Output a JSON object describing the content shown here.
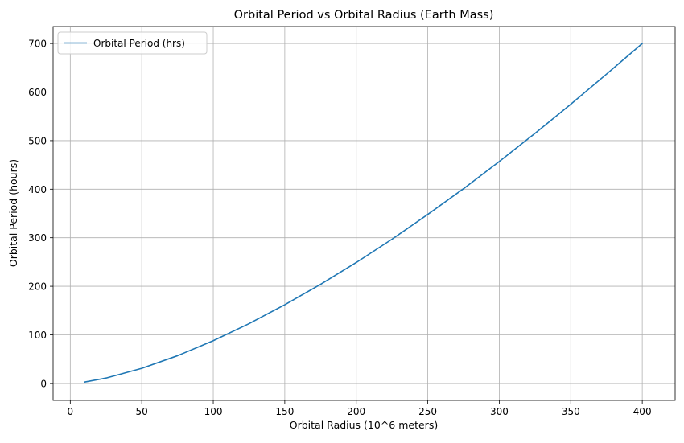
{
  "chart_data": {
    "type": "line",
    "title": "Orbital Period vs Orbital Radius (Earth Mass)",
    "xlabel": "Orbital Radius (10^6 meters)",
    "ylabel": "Orbital Period (hours)",
    "xlim": [
      -12,
      423
    ],
    "ylim": [
      -35,
      735
    ],
    "xticks": [
      0,
      50,
      100,
      150,
      200,
      250,
      300,
      350,
      400
    ],
    "yticks": [
      0,
      100,
      200,
      300,
      400,
      500,
      600,
      700
    ],
    "xtick_labels": [
      "0",
      "50",
      "100",
      "150",
      "200",
      "250",
      "300",
      "350",
      "400"
    ],
    "ytick_labels": [
      "0",
      "100",
      "200",
      "300",
      "400",
      "500",
      "600",
      "700"
    ],
    "grid": true,
    "legend": "top-left",
    "series": [
      {
        "name": "Orbital Period (hrs)",
        "color": "#1f77b4",
        "x": [
          10,
          25,
          50,
          75,
          100,
          125,
          150,
          175,
          200,
          225,
          250,
          275,
          300,
          325,
          350,
          375,
          400
        ],
        "y": [
          2.8,
          11.0,
          31.0,
          57.0,
          88.0,
          123.0,
          162.0,
          204.0,
          249.0,
          297.0,
          348.0,
          401.0,
          457.0,
          515.0,
          575.0,
          637.0,
          700.0
        ]
      }
    ]
  }
}
